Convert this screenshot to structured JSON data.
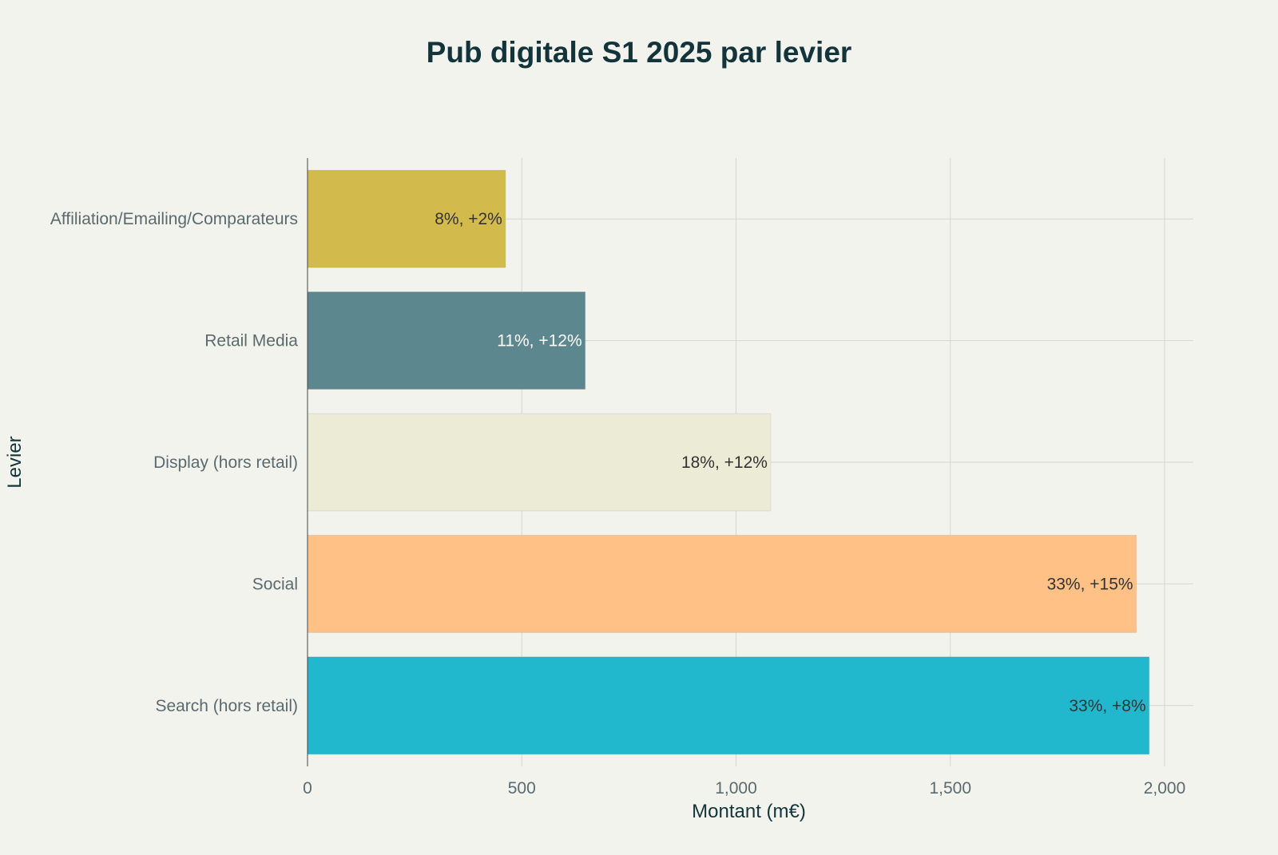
{
  "chart_data": {
    "type": "bar",
    "orientation": "horizontal",
    "title": "Pub digitale S1 2025 par levier",
    "xlabel": "Montant (m€)",
    "ylabel": "Levier",
    "xlim": [
      0,
      2050
    ],
    "xticks": [
      0,
      500,
      1000,
      1500,
      2000
    ],
    "xtick_labels": [
      "0",
      "500",
      "1,000",
      "1,500",
      "2,000"
    ],
    "grid": true,
    "categories": [
      "Affiliation/Emailing/Comparateurs",
      "Retail Media",
      "Display (hors retail)",
      "Social",
      "Search (hors retail)"
    ],
    "values": [
      462,
      648,
      1081,
      1934,
      1964
    ],
    "data_labels": [
      "8%, +2%",
      "11%, +12%",
      "18%, +12%",
      "33%, +15%",
      "33%, +8%"
    ],
    "colors": [
      "#d3ba4c",
      "#5d878f",
      "#ecebd6",
      "#ffc185",
      "#21b8cd"
    ],
    "label_colors": [
      "#333333",
      "#ffffff",
      "#333333",
      "#333333",
      "#333333"
    ]
  }
}
